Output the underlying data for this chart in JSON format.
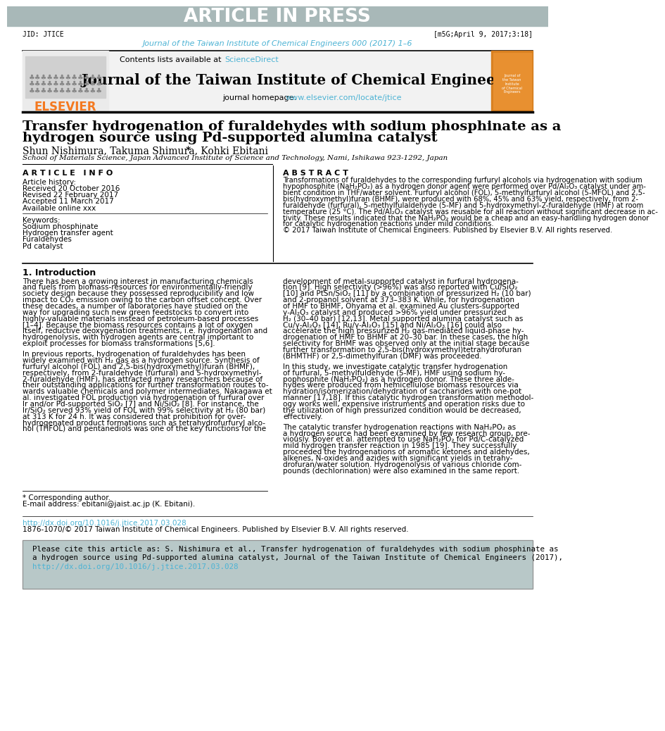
{
  "article_in_press_bg": "#a8b8b8",
  "article_in_press_text": "ARTICLE IN PRESS",
  "jid_left": "JID: JTICE",
  "jid_right": "[m5G;April 9, 2017;3:18]",
  "journal_ref": "Journal of the Taiwan Institute of Chemical Engineers 000 (2017) 1–6",
  "journal_name": "Journal of the Taiwan Institute of Chemical Engineers",
  "elsevier_color": "#f47920",
  "link_color": "#4db3d4",
  "affiliation": "School of Materials Science, Japan Advanced Institute of Science and Technology, Nami, Ishikawa 923-1292, Japan",
  "article_info_title": "A R T I C L E   I N F O",
  "abstract_title": "A B S T R A C T",
  "article_history_label": "Article history:",
  "received": "Received 20 October 2016",
  "revised": "Revised 22 February 2017",
  "accepted": "Accepted 11 March 2017",
  "available": "Available online xxx",
  "keywords_label": "Keywords:",
  "kw1": "Sodium phosphinate",
  "kw2": "Hydrogen transfer agent",
  "kw3": "Furaldehydes",
  "kw4": "Pd catalyst",
  "section1_title": "1. Introduction",
  "footnote_star": "* Corresponding author.",
  "footnote_email": "E-mail address: ebitani@jaist.ac.jp (K. Ebitani).",
  "doi_link": "http://dx.doi.org/10.1016/j.jtice.2017.03.028",
  "copyright_text": "1876-1070/© 2017 Taiwan Institute of Chemical Engineers. Published by Elsevier B.V. All rights reserved.",
  "cite_box_bg": "#b8c8c8",
  "abstract_lines": [
    "Transformations of furaldehydes to the corresponding furfuryl alcohols via hydrogenation with sodium",
    "hypophosphite (NaH₂PO₂) as a hydrogen donor agent were performed over Pd/Al₂O₃ catalyst under am-",
    "bient condition in THF/water solvent. Furfuryl alcohol (FOL), 5-methylfurfuryl alcohol (5-MFOL) and 2,5-",
    "bis(hydroxymethyl)furan (BHMF), were produced with 68%, 45% and 63% yield, respectively, from 2-",
    "furaldehyde (furfural), 5-methylfulaldehyde (5-MF) and 5-hydroxymethyl-2-furaldehyde (HMF) at room",
    "temperature (25 °C). The Pd/Al₂O₃ catalyst was reusable for all reaction without significant decrease in ac-",
    "tivity. These results indicated that the NaH₂PO₂ would be a cheap and an easy-handling hydrogen donor",
    "for catalytic hydrogenation reactions under mild conditions.",
    "© 2017 Taiwan Institute of Chemical Engineers. Published by Elsevier B.V. All rights reserved."
  ],
  "left_intro_lines1": [
    "There has been a growing interest in manufacturing chemicals",
    "and fuels from biomass-resources for environmentally-friendly",
    "society design because they possessed reproducibility and low",
    "impact to CO₂ emission owing to the carbon offset concept. Over",
    "these decades, a number of laboratories have studied on the",
    "way for upgrading such new green feedstocks to convert into",
    "highly-valuable materials instead of petroleum-based processes",
    "[1–4]. Because the biomass resources contains a lot of oxygen",
    "itself, reductive deoxygenation treatments, i.e. hydrogenation and",
    "hydrogenolysis, with hydrogen agents are central important to",
    "exploit processes for biomass transformations [5,6]."
  ],
  "left_intro_lines2": [
    "In previous reports, hydrogenation of furaldehydes has been",
    "widely examined with H₂ gas as a hydrogen source. Synthesis of",
    "furfuryl alcohol (FOL) and 2,5-bis(hydroxymethyl)furan (BHMF),",
    "respectively, from 2-furaldehyde (furfural) and 5-hydroxymethyl-",
    "2-furaldehyde (HMF), has attracted many researchers because of",
    "their outstanding applications for further transformation routes to-",
    "wards valuable chemicals and polymer intermediates. Nakagawa et",
    "al. investigated FOL production via hydrogenation of furfural over",
    "Ir and/or Pd-supported SiO₂ [7] and Ni/SiO₂ [8]. For instance, the",
    "Ir/SiO₂ served 93% yield of FOL with 99% selectivity at H₂ (80 bar)",
    "at 313 K for 24 h. It was considered that prohibition for over-",
    "hydrogenated product formations such as tetrahydrofurfuryl alco-",
    "hol (THFOL) and pentanediols was one of the key functions for the"
  ],
  "right_intro_lines1": [
    "development of metal-supported catalyst in furfural hydrogena-",
    "tion [9]. High selectivity (>96%) was also reported with Cu/SiO₂",
    "[10] and PtSn/SiO₂ [11] by a combination of pressurized H₂ (10 bar)",
    "and 2-propanol solvent at 373–383 K. While, for hydrogenation",
    "of HMF to BHMF, Ohyama et al. examined Au clusters-supported",
    "γ-Al₂O₃ catalyst and produced >96% yield under pressurized",
    "H₂ (30–40 bar) [12,13]. Metal supported alumina catalyst such as",
    "Cu/γ-Al₂O₃ [14], Ru/γ-Al₂O₃ [15] and Ni/Al₂O₃ [16] could also",
    "accelerate the high pressurized H₂ gas-mediated liquid-phase hy-",
    "drogenation of HMF to BHMF at 20–30 bar. In these cases, the high",
    "selectivity for BHMF was observed only at the initial stage because",
    "further transformation to 2,5-bis(hydroxymethyl)tetrahydrofuran",
    "(BHMTHF) or 2,5-dimethylfuran (DMF) was proceeded."
  ],
  "right_intro_lines2": [
    "In this study, we investigate catalytic transfer hydrogenation",
    "of furfural, 5-methylfuldehyde (5-MF), HMF using sodium hy-",
    "pophosphite (NaH₂PO₂) as a hydrogen donor. These three alde-",
    "hydes were produced from hemicellulose biomass resources via",
    "hydration/isomerization/dehydration of saccharides with one-pot",
    "manner [17,18]. If this catalytic hydrogen transformation methodol-",
    "ogy works well, expensive instruments and operation risks due to",
    "the utilization of high pressurized condition would be decreased,",
    "effectively."
  ],
  "right_intro_lines3": [
    "The catalytic transfer hydrogenation reactions with NaH₂PO₂ as",
    "a hydrogen source had been examined by few research group, pre-",
    "viously. Boyer et al. attempted to use NaH₂PO₂ for Pd/C-catalyzed",
    "mild hydrogen transfer reaction in 1985 [19]. They successfully",
    "proceeded the hydrogenations of aromatic ketones and aldehydes,",
    "alkenes, N-oxides and azides with significant yields in tetrahy-",
    "drofuran/water solution. Hydrogenolysis of various chloride com-",
    "pounds (dechlorination) were also examined in the same report."
  ],
  "cite_lines": [
    "Please cite this article as: S. Nishimura et al., Transfer hydrogenation of furaldehydes with sodium phosphinate as",
    "a hydrogen source using Pd-supported alumina catalyst, Journal of the Taiwan Institute of Chemical Engineers (2017),"
  ],
  "cite_doi": "http://dx.doi.org/10.1016/j.jtice.2017.03.028"
}
